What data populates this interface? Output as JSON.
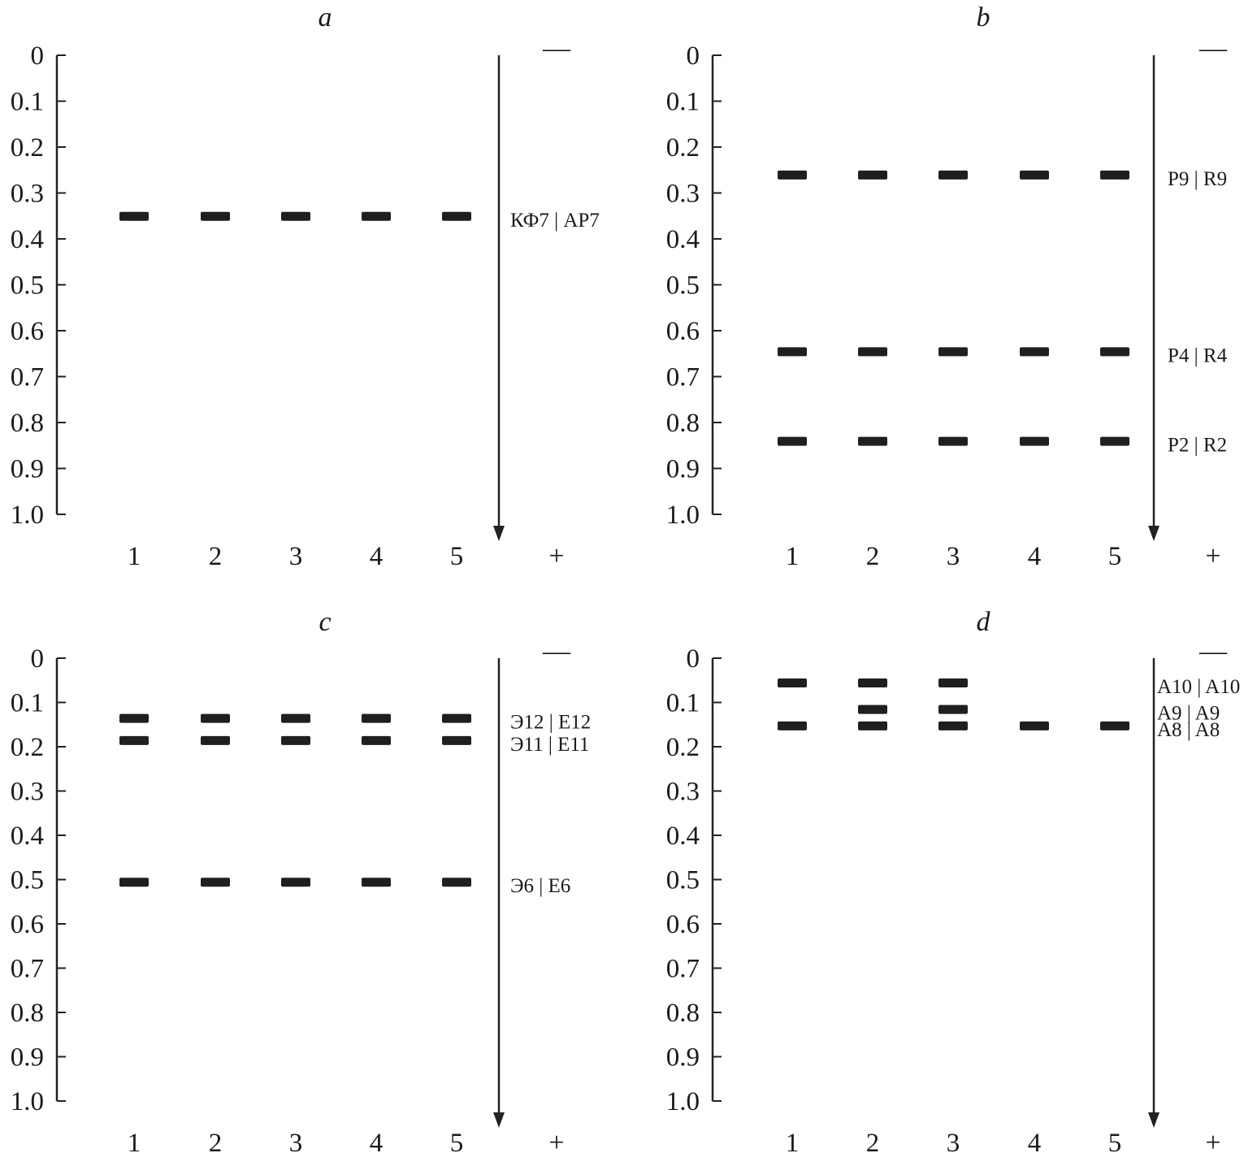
{
  "chart_data": [
    {
      "type": "diagram",
      "panel": "a",
      "y_ticks": [
        "0",
        "0.1",
        "0.2",
        "0.3",
        "0.4",
        "0.5",
        "0.6",
        "0.7",
        "0.8",
        "0.9",
        "1.0"
      ],
      "ylim": [
        0,
        1.0
      ],
      "lanes": [
        "1",
        "2",
        "3",
        "4",
        "5"
      ],
      "cathode": "—",
      "anode": "+",
      "bands": [
        {
          "label": "КФ7 | AP7",
          "rf": 0.35,
          "lanes": [
            1,
            2,
            3,
            4,
            5
          ]
        }
      ]
    },
    {
      "type": "diagram",
      "panel": "b",
      "y_ticks": [
        "0",
        "0.1",
        "0.2",
        "0.3",
        "0.4",
        "0.5",
        "0.6",
        "0.7",
        "0.8",
        "0.9",
        "1.0"
      ],
      "ylim": [
        0,
        1.0
      ],
      "lanes": [
        "1",
        "2",
        "3",
        "4",
        "5"
      ],
      "cathode": "—",
      "anode": "+",
      "bands": [
        {
          "label": "P9 | R9",
          "rf": 0.26,
          "lanes": [
            1,
            2,
            3,
            4,
            5
          ]
        },
        {
          "label": "P4 | R4",
          "rf": 0.645,
          "lanes": [
            1,
            2,
            3,
            4,
            5
          ]
        },
        {
          "label": "P2 | R2",
          "rf": 0.84,
          "lanes": [
            1,
            2,
            3,
            4,
            5
          ]
        }
      ]
    },
    {
      "type": "diagram",
      "panel": "c",
      "y_ticks": [
        "0",
        "0.1",
        "0.2",
        "0.3",
        "0.4",
        "0.5",
        "0.6",
        "0.7",
        "0.8",
        "0.9",
        "1.0"
      ],
      "ylim": [
        0,
        1.0
      ],
      "lanes": [
        "1",
        "2",
        "3",
        "4",
        "5"
      ],
      "cathode": "—",
      "anode": "+",
      "bands": [
        {
          "label": "Э12 | E12",
          "rf": 0.135,
          "lanes": [
            1,
            2,
            3,
            4,
            5
          ]
        },
        {
          "label": "Э11 | E11",
          "rf": 0.185,
          "lanes": [
            1,
            2,
            3,
            4,
            5
          ]
        },
        {
          "label": "Э6 | E6",
          "rf": 0.505,
          "lanes": [
            1,
            2,
            3,
            4,
            5
          ]
        }
      ]
    },
    {
      "type": "diagram",
      "panel": "d",
      "y_ticks": [
        "0",
        "0.1",
        "0.2",
        "0.3",
        "0.4",
        "0.5",
        "0.6",
        "0.7",
        "0.8",
        "0.9",
        "1.0"
      ],
      "ylim": [
        0,
        1.0
      ],
      "lanes": [
        "1",
        "2",
        "3",
        "4",
        "5"
      ],
      "cathode": "—",
      "anode": "+",
      "bands": [
        {
          "label": "A10 | A10",
          "rf": 0.055,
          "lanes": [
            1,
            2,
            3
          ]
        },
        {
          "label": "A9 | A9",
          "rf": 0.115,
          "lanes": [
            2,
            3
          ]
        },
        {
          "label": "A8 | A8",
          "rf": 0.152,
          "lanes": [
            1,
            2,
            3,
            4,
            5
          ]
        }
      ]
    }
  ]
}
